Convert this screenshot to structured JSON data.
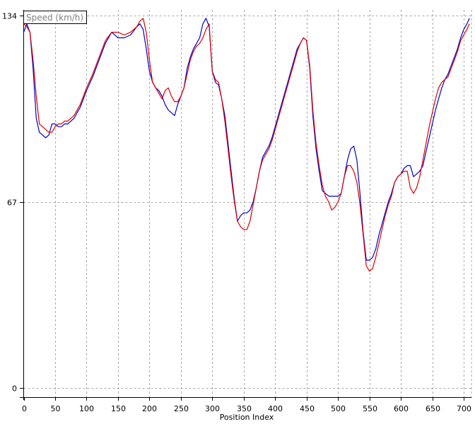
{
  "chart_data": {
    "type": "line",
    "title": "",
    "legend_label": "Speed (km/h)",
    "legend_placement": "top-left",
    "xlabel": "Position Index",
    "ylabel": "",
    "xlim": [
      0,
      710
    ],
    "ylim": [
      0,
      134
    ],
    "xticks": [
      0,
      50,
      100,
      150,
      200,
      250,
      300,
      350,
      400,
      450,
      500,
      550,
      600,
      650,
      700
    ],
    "yticks": [
      0,
      67,
      134
    ],
    "grid": true,
    "series": [
      {
        "color": "#0000cc",
        "x": [
          0,
          5,
          10,
          15,
          20,
          25,
          30,
          35,
          40,
          45,
          50,
          55,
          60,
          65,
          70,
          75,
          80,
          85,
          90,
          95,
          100,
          110,
          120,
          130,
          140,
          150,
          160,
          170,
          180,
          185,
          190,
          195,
          200,
          205,
          210,
          215,
          220,
          225,
          230,
          235,
          240,
          245,
          250,
          255,
          260,
          265,
          270,
          275,
          280,
          285,
          290,
          295,
          300,
          305,
          310,
          315,
          320,
          325,
          330,
          335,
          340,
          345,
          350,
          355,
          360,
          365,
          370,
          375,
          380,
          385,
          390,
          395,
          400,
          405,
          410,
          415,
          420,
          425,
          430,
          435,
          440,
          445,
          450,
          455,
          460,
          465,
          470,
          475,
          480,
          485,
          490,
          495,
          500,
          505,
          510,
          515,
          520,
          525,
          530,
          535,
          540,
          545,
          550,
          555,
          560,
          565,
          570,
          575,
          580,
          585,
          590,
          595,
          600,
          605,
          610,
          615,
          620,
          625,
          630,
          635,
          640,
          645,
          650,
          655,
          660,
          665,
          670,
          675,
          680,
          685,
          690,
          695,
          700,
          705,
          709
        ],
        "y": [
          128,
          131,
          128,
          115,
          97,
          92,
          91,
          90,
          91,
          95,
          95,
          94,
          94,
          95,
          95,
          96,
          97,
          99,
          101,
          104,
          107,
          112,
          118,
          124,
          128,
          126,
          126,
          127,
          130,
          131,
          129,
          122,
          114,
          110,
          108,
          107,
          105,
          102,
          100,
          99,
          98,
          102,
          105,
          108,
          115,
          119,
          122,
          124,
          126,
          131,
          133,
          130,
          114,
          110,
          109,
          104,
          98,
          88,
          78,
          68,
          60,
          62,
          63,
          63,
          64,
          67,
          72,
          78,
          83,
          85,
          87,
          90,
          94,
          98,
          102,
          106,
          110,
          114,
          118,
          122,
          124,
          126,
          125,
          115,
          98,
          86,
          78,
          71,
          70,
          69,
          69,
          69,
          69,
          70,
          76,
          82,
          86,
          87,
          82,
          70,
          56,
          46,
          46,
          47,
          50,
          55,
          59,
          63,
          67,
          70,
          74,
          76,
          77,
          79,
          80,
          80,
          76,
          77,
          78,
          80,
          85,
          90,
          95,
          100,
          104,
          108,
          111,
          113,
          116,
          119,
          122,
          126,
          129,
          131,
          133
        ],
        "name": ""
      },
      {
        "color": "#dd0000",
        "x": [
          0,
          5,
          10,
          15,
          20,
          25,
          30,
          35,
          40,
          45,
          50,
          55,
          60,
          65,
          70,
          75,
          80,
          85,
          90,
          95,
          100,
          110,
          120,
          130,
          140,
          150,
          160,
          170,
          180,
          185,
          190,
          195,
          200,
          205,
          210,
          215,
          220,
          225,
          230,
          235,
          240,
          245,
          250,
          255,
          260,
          265,
          270,
          275,
          280,
          285,
          290,
          295,
          300,
          305,
          310,
          315,
          320,
          325,
          330,
          335,
          340,
          345,
          350,
          355,
          360,
          365,
          370,
          375,
          380,
          385,
          390,
          395,
          400,
          405,
          410,
          415,
          420,
          425,
          430,
          435,
          440,
          445,
          450,
          455,
          460,
          465,
          470,
          475,
          480,
          485,
          490,
          495,
          500,
          505,
          510,
          515,
          520,
          525,
          530,
          535,
          540,
          545,
          550,
          555,
          560,
          565,
          570,
          575,
          580,
          585,
          590,
          595,
          600,
          605,
          610,
          615,
          620,
          625,
          630,
          635,
          640,
          645,
          650,
          655,
          660,
          665,
          670,
          675,
          680,
          685,
          690,
          695,
          700,
          705,
          709
        ],
        "y": [
          131,
          130,
          128,
          118,
          105,
          95,
          94,
          93,
          92,
          92,
          94,
          95,
          95,
          96,
          96,
          97,
          98,
          100,
          102,
          105,
          108,
          113,
          119,
          125,
          128,
          128,
          127,
          128,
          130,
          132,
          133,
          128,
          118,
          110,
          108,
          106,
          104,
          107,
          108,
          105,
          103,
          103,
          105,
          108,
          113,
          118,
          121,
          123,
          124,
          126,
          129,
          131,
          114,
          111,
          110,
          104,
          96,
          86,
          76,
          67,
          60,
          58,
          57,
          57,
          60,
          66,
          72,
          78,
          82,
          84,
          86,
          89,
          93,
          97,
          101,
          105,
          109,
          113,
          117,
          121,
          124,
          126,
          125,
          116,
          100,
          88,
          80,
          73,
          69,
          67,
          64,
          65,
          67,
          70,
          76,
          80,
          80,
          78,
          74,
          66,
          55,
          44,
          42,
          43,
          47,
          52,
          57,
          62,
          66,
          69,
          74,
          76,
          77,
          78,
          78,
          72,
          70,
          72,
          76,
          82,
          88,
          94,
          99,
          104,
          108,
          110,
          111,
          112,
          115,
          118,
          121,
          125,
          127,
          129,
          131
        ],
        "name": ""
      }
    ]
  }
}
